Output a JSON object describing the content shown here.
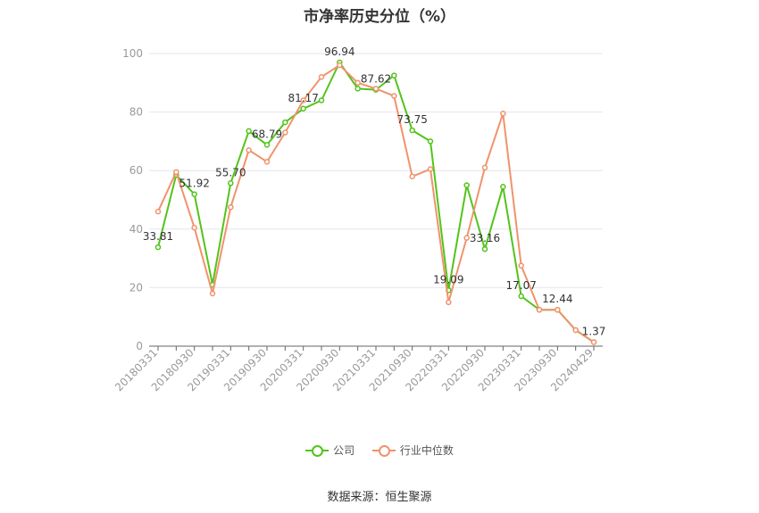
{
  "chart_data": {
    "type": "line",
    "title": "市净率历史分位（%）",
    "source": "数据来源：恒生聚源",
    "ylim": [
      0,
      100
    ],
    "yticks": [
      "0",
      "20",
      "40",
      "60",
      "80",
      "100"
    ],
    "grid": true,
    "legend_position": "bottom",
    "x_tick_labels": [
      "20180331",
      "20180930",
      "20190331",
      "20190930",
      "20200331",
      "20200930",
      "20210331",
      "20210930",
      "20220331",
      "20220930",
      "20230331",
      "20230930",
      "20240429"
    ],
    "x_points": [
      "20180331",
      "20180630",
      "20180930",
      "20181231",
      "20190331",
      "20190630",
      "20190930",
      "20191231",
      "20200331",
      "20200630",
      "20200930",
      "20201231",
      "20210331",
      "20210630",
      "20210930",
      "20211231",
      "20220331",
      "20220630",
      "20220930",
      "20221231",
      "20230331",
      "20230630",
      "20230930",
      "20231231",
      "20240429"
    ],
    "series": [
      {
        "name": "公司",
        "color": "#52c41a",
        "values": [
          33.81,
          58.5,
          51.92,
          21.0,
          55.7,
          73.5,
          68.79,
          76.5,
          81.17,
          84.0,
          96.94,
          88.0,
          87.62,
          92.5,
          73.75,
          70.0,
          19.09,
          55.0,
          33.16,
          54.5,
          17.07,
          12.44,
          12.44,
          5.5,
          1.37
        ],
        "labels": [
          "33.81",
          "",
          "51.92",
          "",
          "55.70",
          "",
          "68.79",
          "",
          "81.17",
          "",
          "96.94",
          "",
          "87.62",
          "",
          "73.75",
          "",
          "19.09",
          "",
          "33.16",
          "",
          "17.07",
          "",
          "12.44",
          "",
          "1.37"
        ]
      },
      {
        "name": "行业中位数",
        "color": "#f0936c",
        "values": [
          46.0,
          59.5,
          40.5,
          18.0,
          47.5,
          67.0,
          63.0,
          73.0,
          84.0,
          92.0,
          96.0,
          90.0,
          88.0,
          85.5,
          58.0,
          60.5,
          15.0,
          37.0,
          61.0,
          79.5,
          27.5,
          12.44,
          12.44,
          5.5,
          1.37
        ]
      }
    ]
  }
}
